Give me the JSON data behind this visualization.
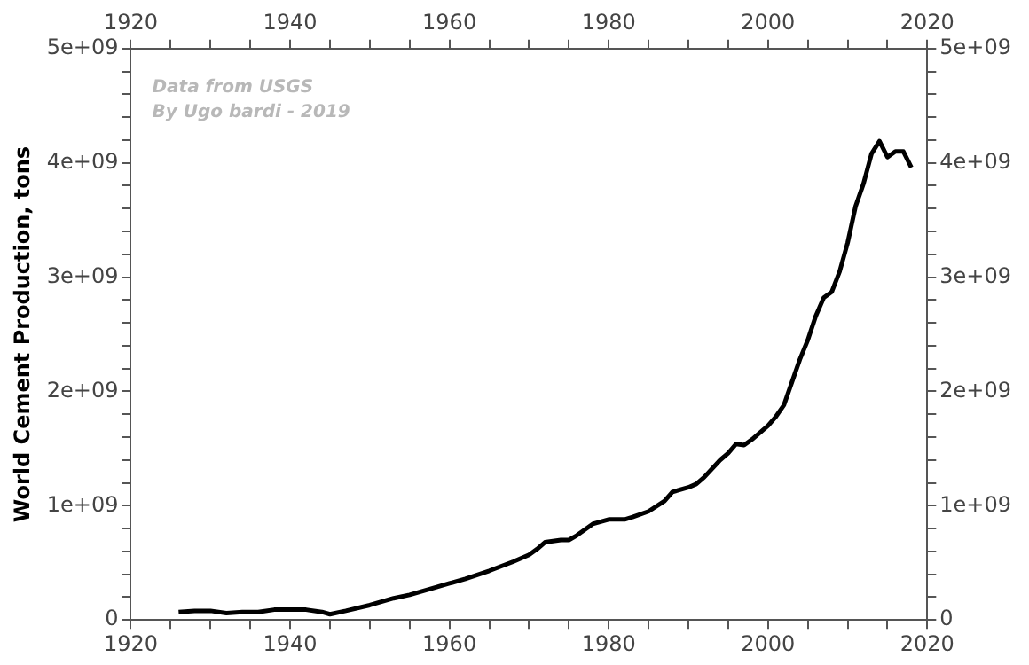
{
  "chart_data": {
    "type": "line",
    "ylabel": "World Cement Production, tons",
    "annotations": [
      "Data from USGS",
      "By Ugo bardi - 2019"
    ],
    "series": [
      {
        "color": "#000000",
        "x": [
          1926,
          1928,
          1930,
          1932,
          1934,
          1936,
          1938,
          1940,
          1942,
          1944,
          1945,
          1947,
          1950,
          1953,
          1955,
          1958,
          1960,
          1962,
          1965,
          1968,
          1970,
          1971,
          1972,
          1974,
          1975,
          1976,
          1978,
          1979,
          1980,
          1982,
          1983,
          1985,
          1987,
          1988,
          1990,
          1991,
          1992,
          1994,
          1995,
          1996,
          1997,
          1998,
          2000,
          2001,
          2002,
          2003,
          2004,
          2005,
          2006,
          2007,
          2008,
          2009,
          2010,
          2011,
          2012,
          2013,
          2014,
          2015,
          2016,
          2017,
          2018
        ],
        "values": [
          70000000.0,
          80000000.0,
          80000000.0,
          60000000.0,
          70000000.0,
          70000000.0,
          90000000.0,
          90000000.0,
          90000000.0,
          70000000.0,
          50000000.0,
          80000000.0,
          130000000.0,
          190000000.0,
          220000000.0,
          280000000.0,
          320000000.0,
          360000000.0,
          430000000.0,
          510000000.0,
          570000000.0,
          620000000.0,
          680000000.0,
          700000000.0,
          700000000.0,
          740000000.0,
          840000000.0,
          860000000.0,
          880000000.0,
          880000000.0,
          900000000.0,
          950000000.0,
          1040000000.0,
          1120000000.0,
          1160000000.0,
          1190000000.0,
          1250000000.0,
          1400000000.0,
          1460000000.0,
          1540000000.0,
          1530000000.0,
          1580000000.0,
          1700000000.0,
          1780000000.0,
          1880000000.0,
          2080000000.0,
          2280000000.0,
          2450000000.0,
          2660000000.0,
          2820000000.0,
          2870000000.0,
          3050000000.0,
          3300000000.0,
          3620000000.0,
          3820000000.0,
          4080000000.0,
          4190000000.0,
          4050000000.0,
          4100000000.0,
          4100000000.0,
          3960000000.0
        ]
      }
    ],
    "xlim": [
      1920,
      2020
    ],
    "xticks": [
      1920,
      {
        "value": 1925,
        "label": null
      },
      {
        "value": 1930,
        "label": null
      },
      {
        "value": 1935,
        "label": null
      },
      1940,
      {
        "value": 1945,
        "label": null
      },
      {
        "value": 1950,
        "label": null
      },
      {
        "value": 1955,
        "label": null
      },
      1960,
      {
        "value": 1965,
        "label": null
      },
      {
        "value": 1970,
        "label": null
      },
      {
        "value": 1975,
        "label": null
      },
      1980,
      {
        "value": 1985,
        "label": null
      },
      {
        "value": 1990,
        "label": null
      },
      {
        "value": 1995,
        "label": null
      },
      2000,
      {
        "value": 2005,
        "label": null
      },
      {
        "value": 2010,
        "label": null
      },
      {
        "value": 2015,
        "label": null
      },
      2020
    ],
    "x2lim": [
      1920,
      2020
    ],
    "x2ticks": [
      1920,
      {
        "value": 1925,
        "label": null
      },
      {
        "value": 1930,
        "label": null
      },
      {
        "value": 1935,
        "label": null
      },
      1940,
      {
        "value": 1945,
        "label": null
      },
      {
        "value": 1950,
        "label": null
      },
      {
        "value": 1955,
        "label": null
      },
      1960,
      {
        "value": 1965,
        "label": null
      },
      {
        "value": 1970,
        "label": null
      },
      {
        "value": 1975,
        "label": null
      },
      1980,
      {
        "value": 1985,
        "label": null
      },
      {
        "value": 1990,
        "label": null
      },
      {
        "value": 1995,
        "label": null
      },
      2000,
      {
        "value": 2005,
        "label": null
      },
      {
        "value": 2010,
        "label": null
      },
      {
        "value": 2015,
        "label": null
      },
      2020
    ],
    "ylim": [
      0,
      5000000000
    ],
    "yticks": [
      0,
      {
        "value": 200000000,
        "label": null
      },
      {
        "value": 400000000,
        "label": null
      },
      {
        "value": 600000000,
        "label": null
      },
      {
        "value": 800000000,
        "label": null
      },
      {
        "value": 1000000000,
        "label": "1e+09"
      },
      {
        "value": 1200000000,
        "label": null
      },
      {
        "value": 1400000000,
        "label": null
      },
      {
        "value": 1600000000,
        "label": null
      },
      {
        "value": 1800000000,
        "label": null
      },
      {
        "value": 2000000000,
        "label": "2e+09"
      },
      {
        "value": 2200000000,
        "label": null
      },
      {
        "value": 2400000000,
        "label": null
      },
      {
        "value": 2600000000,
        "label": null
      },
      {
        "value": 2800000000,
        "label": null
      },
      {
        "value": 3000000000,
        "label": "3e+09"
      },
      {
        "value": 3200000000,
        "label": null
      },
      {
        "value": 3400000000,
        "label": null
      },
      {
        "value": 3600000000,
        "label": null
      },
      {
        "value": 3800000000,
        "label": null
      },
      {
        "value": 4000000000,
        "label": "4e+09"
      },
      {
        "value": 4200000000,
        "label": null
      },
      {
        "value": 4400000000,
        "label": null
      },
      {
        "value": 4600000000,
        "label": null
      },
      {
        "value": 4800000000,
        "label": null
      },
      {
        "value": 5000000000,
        "label": "5e+09"
      }
    ],
    "y2lim": [
      0,
      5000000000
    ],
    "y2ticks": [
      0,
      {
        "value": 200000000,
        "label": null
      },
      {
        "value": 400000000,
        "label": null
      },
      {
        "value": 600000000,
        "label": null
      },
      {
        "value": 800000000,
        "label": null
      },
      {
        "value": 1000000000,
        "label": "1e+09"
      },
      {
        "value": 1200000000,
        "label": null
      },
      {
        "value": 1400000000,
        "label": null
      },
      {
        "value": 1600000000,
        "label": null
      },
      {
        "value": 1800000000,
        "label": null
      },
      {
        "value": 2000000000,
        "label": "2e+09"
      },
      {
        "value": 2200000000,
        "label": null
      },
      {
        "value": 2400000000,
        "label": null
      },
      {
        "value": 2600000000,
        "label": null
      },
      {
        "value": 2800000000,
        "label": null
      },
      {
        "value": 3000000000,
        "label": "3e+09"
      },
      {
        "value": 3200000000,
        "label": null
      },
      {
        "value": 3400000000,
        "label": null
      },
      {
        "value": 3600000000,
        "label": null
      },
      {
        "value": 3800000000,
        "label": null
      },
      {
        "value": 4000000000,
        "label": "4e+09"
      },
      {
        "value": 4200000000,
        "label": null
      },
      {
        "value": 4400000000,
        "label": null
      },
      {
        "value": 4600000000,
        "label": null
      },
      {
        "value": 4800000000,
        "label": null
      },
      {
        "value": 5000000000,
        "label": "5e+09"
      }
    ],
    "legend": false,
    "grid": false,
    "marker": "none",
    "line_style": "solid"
  }
}
